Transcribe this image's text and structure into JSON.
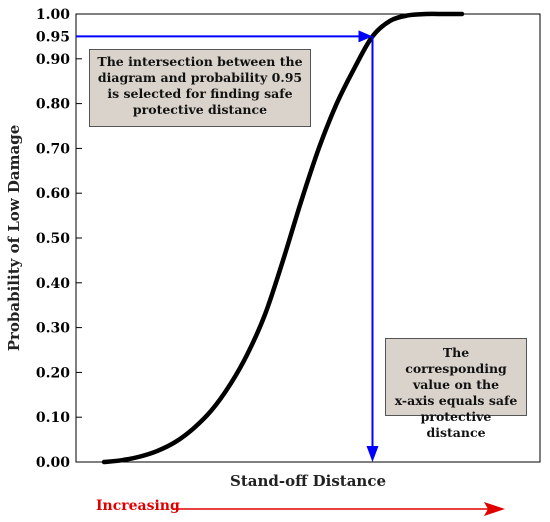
{
  "chart_data": {
    "type": "line",
    "xlabel": "Stand-off Distance",
    "ylabel": "Probability of Low Damage",
    "ylim": [
      0,
      1
    ],
    "y_ticks": [
      "0.00",
      "0.10",
      "0.20",
      "0.30",
      "0.40",
      "0.50",
      "0.60",
      "0.70",
      "0.80",
      "0.90",
      "0.95",
      "1.00"
    ],
    "x_ticks_shown": false,
    "grid": false,
    "series": [
      {
        "values_note_free_x": true,
        "x": [
          0.0,
          0.05,
          0.1,
          0.15,
          0.2,
          0.25,
          0.3,
          0.35,
          0.4,
          0.45,
          0.5,
          0.55,
          0.6,
          0.65,
          0.7,
          0.75,
          0.8,
          0.85,
          0.9,
          0.95,
          1.0
        ],
        "y": [
          0.0,
          0.004,
          0.012,
          0.025,
          0.045,
          0.075,
          0.115,
          0.17,
          0.24,
          0.33,
          0.45,
          0.58,
          0.7,
          0.8,
          0.88,
          0.95,
          0.985,
          0.997,
          1.0,
          1.0,
          1.0
        ]
      }
    ],
    "threshold_probability": 0.95,
    "colors": {
      "curve": "#000000",
      "guide": "#0000ff",
      "increasing": "#e00000"
    },
    "annotations": {
      "top": [
        "The intersection between the",
        "diagram and probability 0.95",
        "is selected for finding safe",
        "protective distance"
      ],
      "bottom": [
        "The corresponding",
        "value on the",
        "x-axis equals safe",
        "protective distance"
      ]
    },
    "direction_label": "Increasing"
  }
}
